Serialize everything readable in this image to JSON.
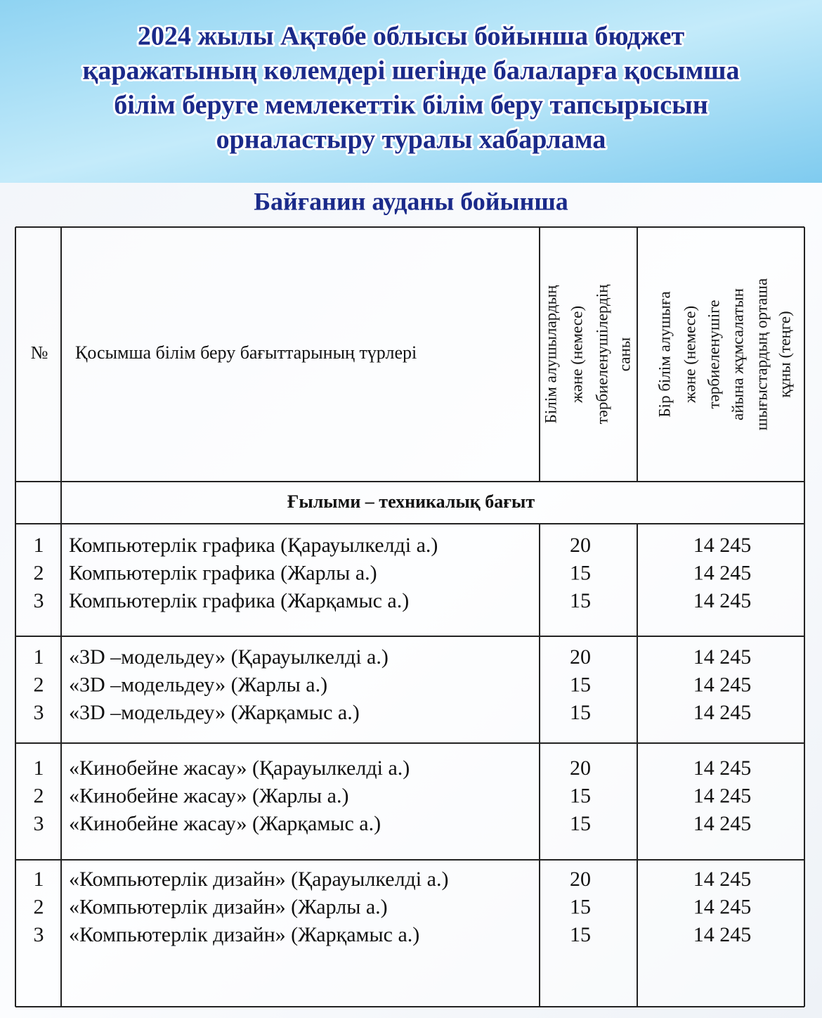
{
  "header": {
    "title_lines": [
      "2024 жылы Ақтөбе облысы бойынша бюджет",
      "қаражатының көлемдері шегінде балаларға қосымша",
      "білім беруге мемлекеттік білім беру тапсырысын",
      "орналастыру туралы хабарлама"
    ]
  },
  "subtitle": "Байғанин ауданы бойынша",
  "table": {
    "columns": [
      "№",
      "Қосымша білім беру бағыттарының түрлері",
      [
        "Білім алушылардың",
        "және (немесе)",
        "тәрбиеленушілердің",
        "саны"
      ],
      [
        "Бір білім алушыға",
        "және (немесе)",
        "тәрбиеленушіге",
        "айына жұмсалатын",
        "шығыстардың орташа",
        "құны (теңге)"
      ]
    ],
    "section": "Ғылыми – техникалық бағыт",
    "groups": [
      [
        [
          1,
          "Компьютерлік графика (Қарауылкелді а.)",
          20,
          "14 245"
        ],
        [
          2,
          "Компьютерлік графика (Жарлы а.)",
          15,
          "14 245"
        ],
        [
          3,
          "Компьютерлік графика (Жарқамыс а.)",
          15,
          "14 245"
        ]
      ],
      [
        [
          1,
          "«3D –модельдеу» (Қарауылкелді а.)",
          20,
          "14 245"
        ],
        [
          2,
          "«3D –модельдеу» (Жарлы а.)",
          15,
          "14 245"
        ],
        [
          3,
          "«3D –модельдеу» (Жарқамыс а.)",
          15,
          "14 245"
        ]
      ],
      [
        [
          1,
          "«Кинобейне жасау» (Қарауылкелді а.)",
          20,
          "14 245"
        ],
        [
          2,
          "«Кинобейне жасау»  (Жарлы а.)",
          15,
          "14 245"
        ],
        [
          3,
          "«Кинобейне жасау» (Жарқамыс а.)",
          15,
          "14 245"
        ]
      ],
      [
        [
          1,
          "«Компьютерлік дизайн» (Қарауылкелді а.)",
          20,
          "14 245"
        ],
        [
          2,
          "«Компьютерлік дизайн» (Жарлы а.)",
          15,
          "14 245"
        ],
        [
          3,
          "«Компьютерлік дизайн» (Жарқамыс а.)",
          15,
          "14 245"
        ]
      ]
    ]
  }
}
